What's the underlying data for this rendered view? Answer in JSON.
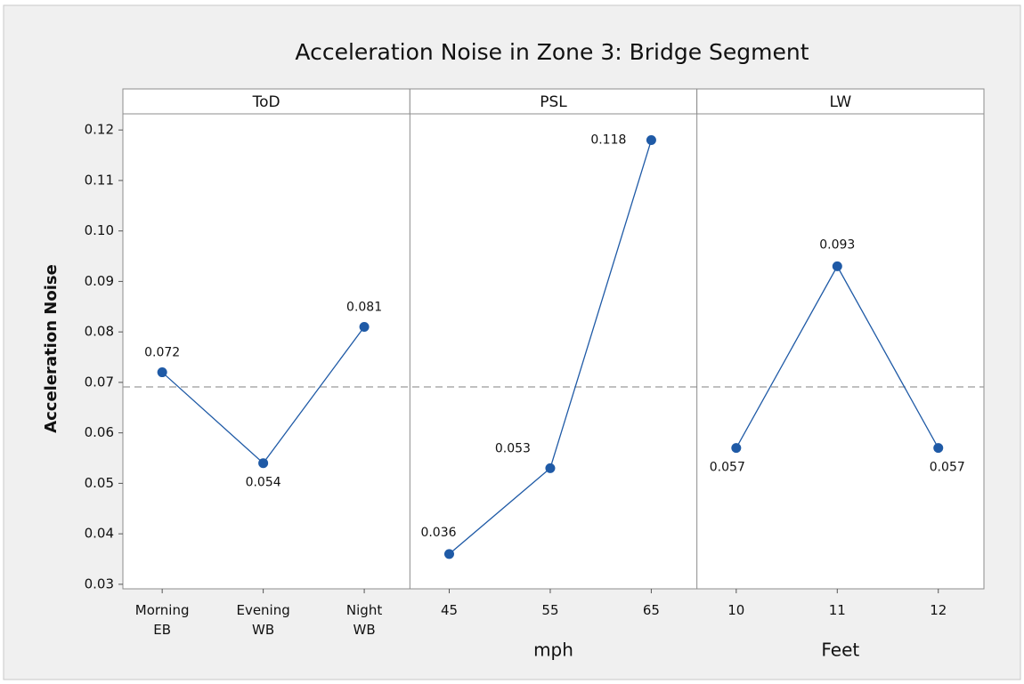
{
  "chart_data": {
    "type": "line",
    "title": "Acceleration Noise in Zone 3: Bridge Segment",
    "ylabel": "Acceleration Noise",
    "ylim": [
      0.0291,
      0.1232
    ],
    "yticks": [
      0.03,
      0.04,
      0.05,
      0.06,
      0.07,
      0.08,
      0.09,
      {
        "value": 0.1,
        "label": "0.10"
      },
      0.11,
      0.12
    ],
    "reference_line": 0.0691,
    "color": "#1f5aa6",
    "panels": [
      {
        "name": "ToD",
        "categories": [
          [
            "Morning",
            "EB"
          ],
          [
            "Evening",
            "WB"
          ],
          [
            "Night",
            "WB"
          ]
        ],
        "values": [
          0.072,
          0.054,
          0.081
        ]
      },
      {
        "name": "PSL",
        "xlabel": "mph",
        "categories": [
          [
            "45"
          ],
          [
            "55"
          ],
          [
            "65"
          ]
        ],
        "values": [
          0.036,
          0.053,
          0.118
        ]
      },
      {
        "name": "LW",
        "xlabel": "Feet",
        "categories": [
          [
            "10"
          ],
          [
            "11"
          ],
          [
            "12"
          ]
        ],
        "values": [
          0.057,
          0.093,
          0.057
        ]
      }
    ]
  }
}
